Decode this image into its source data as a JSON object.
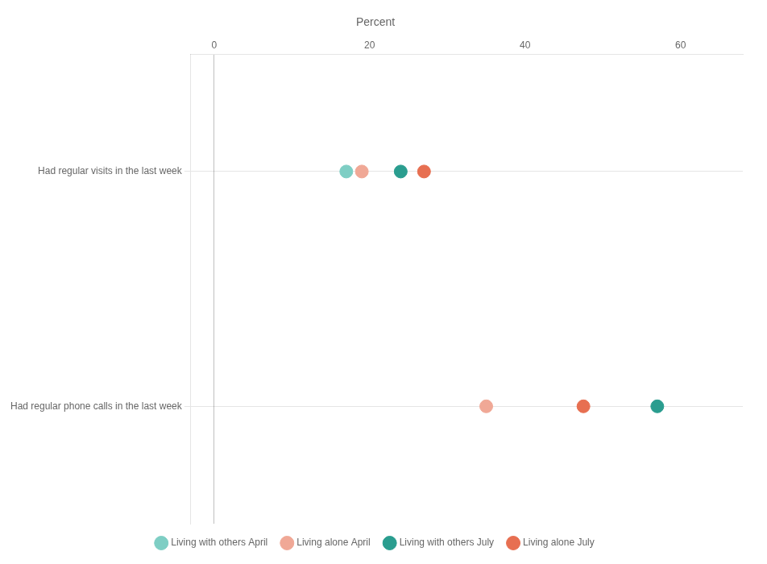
{
  "chart_data": {
    "type": "scatter",
    "orientation": "horizontal",
    "title": "Percent",
    "categories": [
      "Had regular visits in the last week",
      "Had regular phone calls in the last week"
    ],
    "series": [
      {
        "name": "Living with others April",
        "color": "#7ecec4",
        "values": [
          17.0,
          null
        ]
      },
      {
        "name": "Living alone April",
        "color": "#f0a896",
        "values": [
          19.0,
          35.0
        ]
      },
      {
        "name": "Living with others July",
        "color": "#2a9d8f",
        "values": [
          24.0,
          57.0
        ]
      },
      {
        "name": "Living alone July",
        "color": "#e76f51",
        "values": [
          27.0,
          47.5
        ]
      }
    ],
    "xlim": [
      -3,
      68
    ],
    "xticks": [
      0,
      20,
      40,
      60
    ],
    "grid": "y",
    "legend": "bottom"
  }
}
